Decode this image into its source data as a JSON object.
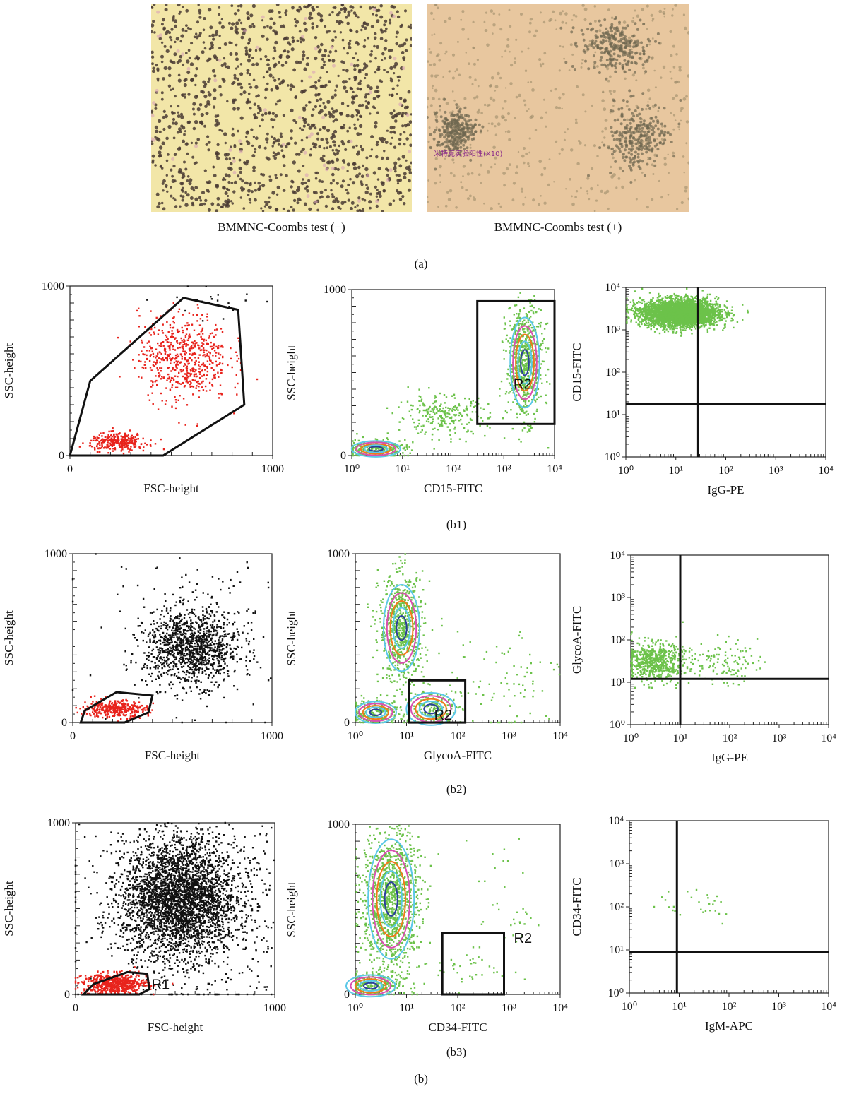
{
  "figure": {
    "panel_a": {
      "left_caption": "BMMNC-Coombs test (−)",
      "right_caption": "BMMNC-Coombs test (+)",
      "photo_overlay_text": "米特克实验阳性(X10)",
      "label": "(a)",
      "colors": {
        "left_bg": "#f2e6a8",
        "right_bg": "#e8c79f",
        "cell": "#4a3b34",
        "overlay_text": "#8a2a8a"
      }
    },
    "row_labels": [
      "(b1)",
      "(b2)",
      "(b3)"
    ],
    "panel_b_label": "(b)",
    "colors": {
      "red_events": "#e8231c",
      "green_events": "#6cc24a",
      "black_events": "#111111",
      "contour_blue": "#2b3f9c",
      "contour_cyan": "#5bc8e8",
      "contour_orange": "#f07a1a",
      "contour_magenta": "#d94fb0",
      "contour_yellow": "#f6e85a"
    }
  },
  "chart_data": [
    {
      "id": "b1-1",
      "type": "scatter",
      "xlabel": "FSC-height",
      "ylabel": "SSC-height",
      "xscale": "linear",
      "yscale": "linear",
      "xlim": [
        0,
        1000
      ],
      "ylim": [
        0,
        1000
      ],
      "xticks": [
        "0",
        "1000"
      ],
      "yticks": [
        "0",
        "1000"
      ],
      "gate": {
        "points": [
          [
            0,
            0
          ],
          [
            100,
            440
          ],
          [
            560,
            930
          ],
          [
            830,
            860
          ],
          [
            860,
            300
          ],
          [
            460,
            0
          ]
        ]
      },
      "populations": [
        {
          "color": "red",
          "center": [
            560,
            580
          ],
          "spread": [
            110,
            130
          ],
          "n": 600
        },
        {
          "color": "red",
          "center": [
            240,
            80
          ],
          "spread": [
            70,
            25
          ],
          "n": 300
        },
        {
          "color": "black",
          "center": [
            800,
            930
          ],
          "spread": [
            150,
            70
          ],
          "n": 30
        }
      ]
    },
    {
      "id": "b1-2",
      "type": "scatter",
      "xlabel": "CD15-FITC",
      "ylabel": "SSC-height",
      "xscale": "log",
      "yscale": "linear",
      "xlim": [
        1,
        10000
      ],
      "ylim": [
        0,
        1000
      ],
      "xticks": [
        "10^0",
        "10^1",
        "10^2",
        "10^3",
        "10^4"
      ],
      "yticks": [
        "0",
        "1000"
      ],
      "gate": {
        "label": "R2",
        "rect": [
          [
            300,
            190
          ],
          [
            10000,
            930
          ]
        ]
      },
      "populations": [
        {
          "color": "green",
          "center": [
            2600,
            560
          ],
          "spread": [
            0.18,
            170
          ],
          "n": 700,
          "contours": true
        },
        {
          "color": "green",
          "center": [
            3,
            40
          ],
          "spread": [
            0.3,
            30
          ],
          "n": 300,
          "contours": true
        },
        {
          "color": "green",
          "center": [
            60,
            240
          ],
          "spread": [
            0.45,
            60
          ],
          "n": 250
        }
      ]
    },
    {
      "id": "b1-3",
      "type": "scatter",
      "xlabel": "IgG-PE",
      "ylabel": "CD15-FITC",
      "xscale": "log",
      "yscale": "log",
      "xlim": [
        1,
        10000
      ],
      "ylim": [
        1,
        10000
      ],
      "xticks": [
        "10^0",
        "10^1",
        "10^2",
        "10^3",
        "10^4"
      ],
      "yticks": [
        "10^0",
        "10^1",
        "10^2",
        "10^3",
        "10^4"
      ],
      "quadrant": {
        "x": 28,
        "y": 18
      },
      "populations": [
        {
          "color": "green",
          "center": [
            12,
            2500
          ],
          "spread": [
            0.38,
            0.16
          ],
          "n": 3500
        }
      ]
    },
    {
      "id": "b2-1",
      "type": "scatter",
      "xlabel": "FSC-height",
      "ylabel": "SSC-height",
      "xscale": "linear",
      "yscale": "linear",
      "xlim": [
        0,
        1000
      ],
      "ylim": [
        0,
        1000
      ],
      "xticks": [
        "0",
        "1000"
      ],
      "yticks": [
        "0",
        "1000"
      ],
      "gate": {
        "points": [
          [
            40,
            0
          ],
          [
            60,
            70
          ],
          [
            220,
            180
          ],
          [
            400,
            160
          ],
          [
            380,
            60
          ],
          [
            260,
            0
          ]
        ]
      },
      "populations": [
        {
          "color": "black",
          "center": [
            600,
            440
          ],
          "spread": [
            120,
            110
          ],
          "n": 1200
        },
        {
          "color": "red",
          "center": [
            210,
            80
          ],
          "spread": [
            80,
            25
          ],
          "n": 350
        },
        {
          "color": "black",
          "center": [
            650,
            650
          ],
          "spread": [
            300,
            260
          ],
          "n": 150
        }
      ]
    },
    {
      "id": "b2-2",
      "type": "scatter",
      "xlabel": "GlycoA-FITC",
      "ylabel": "SSC-height",
      "xscale": "log",
      "yscale": "linear",
      "xlim": [
        1,
        10000
      ],
      "ylim": [
        0,
        1000
      ],
      "xticks": [
        "10^0",
        "10^1",
        "10^2",
        "10^3",
        "10^4"
      ],
      "yticks": [
        "0",
        "1000"
      ],
      "gate": {
        "label": "R2",
        "rect": [
          [
            11,
            0
          ],
          [
            140,
            250
          ]
        ]
      },
      "populations": [
        {
          "color": "green",
          "center": [
            8,
            560
          ],
          "spread": [
            0.22,
            160
          ],
          "n": 700,
          "contours": true
        },
        {
          "color": "green",
          "center": [
            2.5,
            60
          ],
          "spread": [
            0.25,
            40
          ],
          "n": 200,
          "contours": true
        },
        {
          "color": "green",
          "center": [
            30,
            80
          ],
          "spread": [
            0.3,
            60
          ],
          "n": 220,
          "contours": true
        },
        {
          "color": "green",
          "center": [
            600,
            250
          ],
          "spread": [
            0.7,
            180
          ],
          "n": 90
        }
      ]
    },
    {
      "id": "b2-3",
      "type": "scatter",
      "xlabel": "IgG-PE",
      "ylabel": "GlycoA-FITC",
      "xscale": "log",
      "yscale": "log",
      "xlim": [
        1,
        10000
      ],
      "ylim": [
        1,
        10000
      ],
      "xticks": [
        "10^0",
        "10^1",
        "10^2",
        "10^3",
        "10^4"
      ],
      "yticks": [
        "10^0",
        "10^1",
        "10^2",
        "10^3",
        "10^4"
      ],
      "quadrant": {
        "x": 10,
        "y": 12
      },
      "populations": [
        {
          "color": "green",
          "center": [
            3,
            30
          ],
          "spread": [
            0.3,
            0.22
          ],
          "n": 600
        },
        {
          "color": "green",
          "center": [
            70,
            30
          ],
          "spread": [
            0.35,
            0.25
          ],
          "n": 120
        }
      ]
    },
    {
      "id": "b3-1",
      "type": "scatter",
      "xlabel": "FSC-height",
      "ylabel": "SSC-height",
      "xscale": "linear",
      "yscale": "linear",
      "xlim": [
        0,
        1000
      ],
      "ylim": [
        0,
        1000
      ],
      "xticks": [
        "0",
        "1000"
      ],
      "yticks": [
        "0",
        "1000"
      ],
      "gate": {
        "label": "R1",
        "points": [
          [
            40,
            0
          ],
          [
            90,
            60
          ],
          [
            260,
            130
          ],
          [
            360,
            120
          ],
          [
            370,
            30
          ],
          [
            320,
            0
          ]
        ]
      },
      "populations": [
        {
          "color": "black",
          "center": [
            520,
            560
          ],
          "spread": [
            140,
            170
          ],
          "n": 3000
        },
        {
          "color": "black",
          "center": [
            600,
            520
          ],
          "spread": [
            280,
            300
          ],
          "n": 800
        },
        {
          "color": "red",
          "center": [
            200,
            60
          ],
          "spread": [
            80,
            30
          ],
          "n": 600
        }
      ]
    },
    {
      "id": "b3-2",
      "type": "scatter",
      "xlabel": "CD34-FITC",
      "ylabel": "SSC-height",
      "xscale": "log",
      "yscale": "linear",
      "xlim": [
        1,
        10000
      ],
      "ylim": [
        0,
        1000
      ],
      "xticks": [
        "10^0",
        "10^1",
        "10^2",
        "10^3",
        "10^4"
      ],
      "yticks": [
        "0",
        "1000"
      ],
      "gate": {
        "label": "R2",
        "rect": [
          [
            50,
            0
          ],
          [
            800,
            360
          ]
        ]
      },
      "populations": [
        {
          "color": "green",
          "center": [
            5,
            560
          ],
          "spread": [
            0.28,
            220
          ],
          "n": 1200,
          "contours": true
        },
        {
          "color": "green",
          "center": [
            2,
            50
          ],
          "spread": [
            0.3,
            40
          ],
          "n": 250,
          "contours": true
        },
        {
          "color": "green",
          "center": [
            800,
            500
          ],
          "spread": [
            0.3,
            220
          ],
          "n": 40
        },
        {
          "color": "green",
          "center": [
            150,
            150
          ],
          "spread": [
            0.3,
            60
          ],
          "n": 30
        }
      ]
    },
    {
      "id": "b3-3",
      "type": "scatter",
      "xlabel": "IgM-APC",
      "ylabel": "CD34-FITC",
      "xscale": "log",
      "yscale": "log",
      "xlim": [
        1,
        10000
      ],
      "ylim": [
        1,
        10000
      ],
      "xticks": [
        "10^0",
        "10^1",
        "10^2",
        "10^3",
        "10^4"
      ],
      "yticks": [
        "10^0",
        "10^1",
        "10^2",
        "10^3",
        "10^4"
      ],
      "quadrant": {
        "x": 9,
        "y": 9
      },
      "populations": [
        {
          "color": "green",
          "center": [
            20,
            120
          ],
          "spread": [
            0.5,
            0.25
          ],
          "n": 28
        }
      ]
    }
  ]
}
